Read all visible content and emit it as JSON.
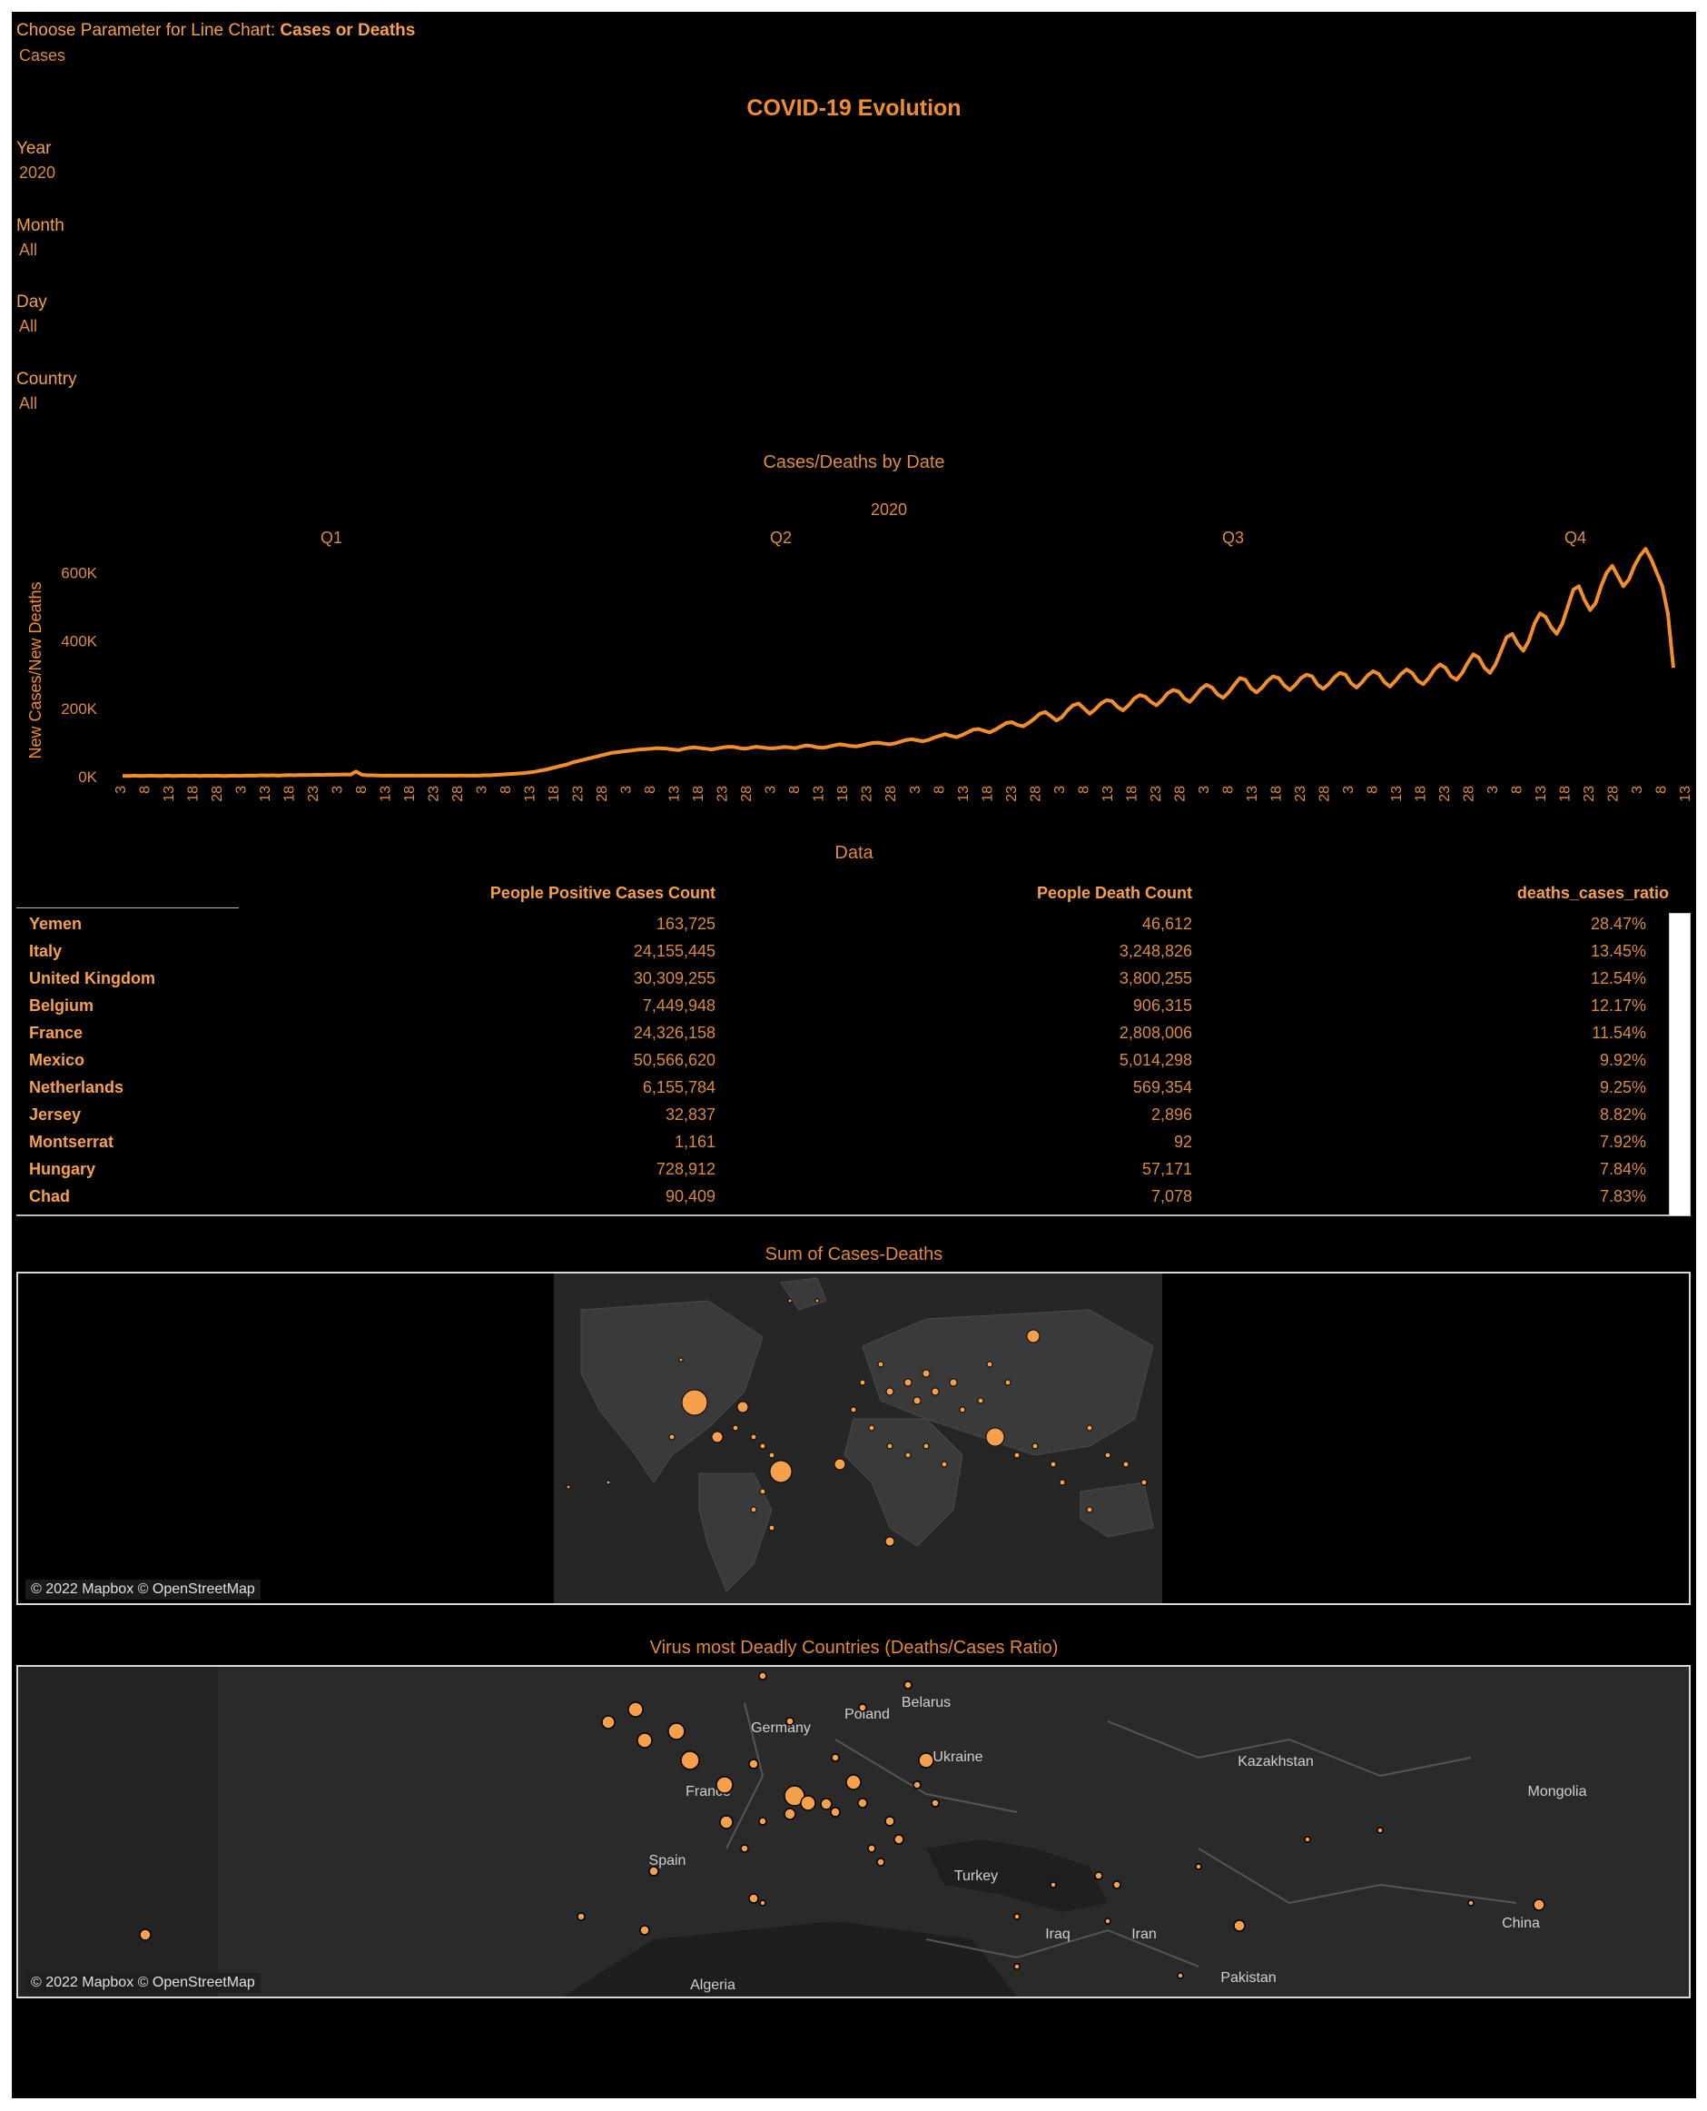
{
  "controls": {
    "param_label": "Choose Parameter for Line Chart: ",
    "param_bold": "Cases or Deaths",
    "param_value": "Cases",
    "year_label": "Year",
    "year_value": "2020",
    "month_label": "Month",
    "month_value": "All",
    "day_label": "Day",
    "day_value": "All",
    "country_label": "Country",
    "country_value": "All"
  },
  "title": "COVID-19 Evolution",
  "chart_data": {
    "type": "line",
    "title": "Cases/Deaths by Date",
    "year_header": "2020",
    "quarters": [
      "Q1",
      "Q2",
      "Q3",
      "Q4"
    ],
    "ylabel": "New Cases/New Deaths",
    "ylim": [
      0,
      700000
    ],
    "yticks": [
      "0K",
      "200K",
      "400K",
      "600K"
    ],
    "ytick_values": [
      0,
      200000,
      400000,
      600000
    ],
    "xticks": [
      "3",
      "8",
      "13",
      "18",
      "28",
      "3",
      "13",
      "18",
      "23",
      "3",
      "8",
      "13",
      "18",
      "23",
      "28",
      "3",
      "8",
      "13",
      "18",
      "23",
      "28",
      "3",
      "8",
      "13",
      "18",
      "23",
      "28",
      "3",
      "8",
      "13",
      "18",
      "23",
      "28",
      "3",
      "8",
      "13",
      "18",
      "23",
      "28",
      "3",
      "8",
      "13",
      "18",
      "23",
      "28",
      "3",
      "8",
      "13",
      "18",
      "23",
      "28",
      "3",
      "8",
      "13",
      "18",
      "23",
      "28",
      "3",
      "8",
      "13",
      "18",
      "23",
      "28",
      "3",
      "8",
      "13"
    ],
    "series": [
      {
        "values": [
          2000,
          2000,
          3000,
          2000,
          2500,
          3000,
          2500,
          2000,
          3000,
          2000,
          2500,
          3000,
          2500,
          3000,
          2000,
          3000,
          2500,
          3000,
          2000,
          2500,
          3000,
          2500,
          3000,
          3500,
          3000,
          4000,
          3500,
          4000,
          3000,
          4000,
          4500,
          4000,
          5000,
          4500,
          5000,
          5500,
          5000,
          6000,
          5500,
          6000,
          6500,
          6000,
          15000,
          6000,
          4000,
          4000,
          3500,
          3000,
          3500,
          3000,
          3500,
          3000,
          3500,
          3000,
          3000,
          3500,
          3000,
          3500,
          3000,
          3500,
          3000,
          3500,
          3000,
          3500,
          3000,
          4000,
          4000,
          5000,
          6000,
          7000,
          8000,
          9000,
          10000,
          12000,
          14000,
          17000,
          20000,
          24000,
          28000,
          32000,
          36000,
          42000,
          46000,
          50000,
          54000,
          58000,
          62000,
          66000,
          70000,
          72000,
          74000,
          76000,
          78000,
          80000,
          81000,
          82000,
          84000,
          83000,
          82000,
          80000,
          78000,
          82000,
          85000,
          86000,
          84000,
          82000,
          80000,
          83000,
          86000,
          88000,
          87000,
          84000,
          82000,
          85000,
          88000,
          86000,
          84000,
          83000,
          85000,
          87000,
          86000,
          84000,
          88000,
          92000,
          90000,
          86000,
          85000,
          88000,
          92000,
          95000,
          93000,
          90000,
          89000,
          92000,
          96000,
          99000,
          100000,
          97000,
          95000,
          98000,
          103000,
          108000,
          110000,
          107000,
          104000,
          108000,
          115000,
          120000,
          125000,
          120000,
          116000,
          122000,
          130000,
          138000,
          140000,
          135000,
          130000,
          138000,
          148000,
          158000,
          160000,
          152000,
          148000,
          158000,
          170000,
          185000,
          190000,
          178000,
          165000,
          175000,
          195000,
          210000,
          215000,
          200000,
          185000,
          198000,
          215000,
          225000,
          222000,
          205000,
          195000,
          210000,
          230000,
          240000,
          235000,
          220000,
          210000,
          225000,
          245000,
          255000,
          250000,
          230000,
          220000,
          238000,
          258000,
          270000,
          262000,
          242000,
          232000,
          248000,
          270000,
          290000,
          285000,
          260000,
          248000,
          262000,
          282000,
          295000,
          290000,
          268000,
          255000,
          270000,
          290000,
          300000,
          295000,
          270000,
          258000,
          272000,
          292000,
          305000,
          300000,
          275000,
          262000,
          278000,
          298000,
          310000,
          302000,
          278000,
          265000,
          282000,
          302000,
          315000,
          305000,
          282000,
          272000,
          290000,
          315000,
          330000,
          320000,
          295000,
          285000,
          305000,
          335000,
          360000,
          350000,
          320000,
          305000,
          330000,
          370000,
          410000,
          420000,
          390000,
          370000,
          400000,
          450000,
          480000,
          470000,
          440000,
          420000,
          450000,
          500000,
          550000,
          560000,
          520000,
          490000,
          510000,
          560000,
          600000,
          620000,
          590000,
          560000,
          580000,
          620000,
          650000,
          670000,
          640000,
          600000,
          560000,
          480000,
          320000
        ]
      }
    ]
  },
  "table": {
    "title": "Data",
    "headers": [
      "People Positive Cases Count",
      "People Death Count",
      "deaths_cases_ratio"
    ],
    "rows": [
      {
        "country": "Yemen",
        "cases": "163,725",
        "deaths": "46,612",
        "ratio": "28.47%"
      },
      {
        "country": "Italy",
        "cases": "24,155,445",
        "deaths": "3,248,826",
        "ratio": "13.45%"
      },
      {
        "country": "United Kingdom",
        "cases": "30,309,255",
        "deaths": "3,800,255",
        "ratio": "12.54%"
      },
      {
        "country": "Belgium",
        "cases": "7,449,948",
        "deaths": "906,315",
        "ratio": "12.17%"
      },
      {
        "country": "France",
        "cases": "24,326,158",
        "deaths": "2,808,006",
        "ratio": "11.54%"
      },
      {
        "country": "Mexico",
        "cases": "50,566,620",
        "deaths": "5,014,298",
        "ratio": "9.92%"
      },
      {
        "country": "Netherlands",
        "cases": "6,155,784",
        "deaths": "569,354",
        "ratio": "9.25%"
      },
      {
        "country": "Jersey",
        "cases": "32,837",
        "deaths": "2,896",
        "ratio": "8.82%"
      },
      {
        "country": "Montserrat",
        "cases": "1,161",
        "deaths": "92",
        "ratio": "7.92%"
      },
      {
        "country": "Hungary",
        "cases": "728,912",
        "deaths": "57,171",
        "ratio": "7.84%"
      },
      {
        "country": "Chad",
        "cases": "90,409",
        "deaths": "7,078",
        "ratio": "7.83%"
      }
    ]
  },
  "map1": {
    "title": "Sum of Cases-Deaths",
    "attribution": "© 2022 Mapbox © OpenStreetMap"
  },
  "map2": {
    "title": "Virus most Deadly Countries (Deaths/Cases Ratio)",
    "attribution": "© 2022 Mapbox © OpenStreetMap",
    "labels": [
      "Germany",
      "Poland",
      "Belarus",
      "Ukraine",
      "France",
      "Spain",
      "Turkey",
      "Iraq",
      "Iran",
      "Kazakhstan",
      "Mongolia",
      "China",
      "Pakistan",
      "Algeria"
    ]
  },
  "colors": {
    "accent": "#f28e2b",
    "background": "#000000",
    "map_land": "#2e2e2e"
  }
}
